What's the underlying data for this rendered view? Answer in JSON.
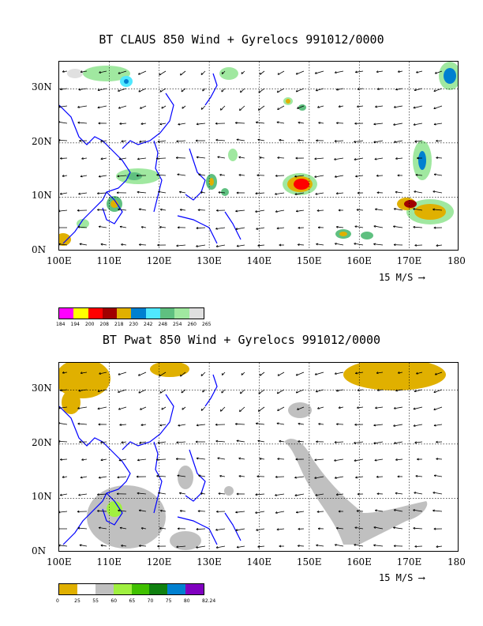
{
  "panels": [
    {
      "title": "BT CLAUS 850 Wind + Gyrelocs 991012/0000",
      "lon_labels": [
        "100E",
        "110E",
        "120E",
        "130E",
        "140E",
        "150E",
        "160E",
        "170E",
        "180"
      ],
      "lat_labels": [
        "30N",
        "20N",
        "10N",
        "0N"
      ],
      "scale_label": "15 M/S",
      "colorbar": {
        "colors": [
          "#ff00ff",
          "#ffff00",
          "#ff0000",
          "#a00000",
          "#e0b000",
          "#0080d0",
          "#50e8ff",
          "#5fc080",
          "#a0e8a0",
          "#e0e0e0"
        ],
        "ticks": [
          "184",
          "194",
          "200",
          "208",
          "218",
          "230",
          "242",
          "248",
          "254",
          "260",
          "265"
        ]
      }
    },
    {
      "title": "BT Pwat 850 Wind + Gyrelocs 991012/0000",
      "lon_labels": [
        "100E",
        "110E",
        "120E",
        "130E",
        "140E",
        "150E",
        "160E",
        "170E",
        "180"
      ],
      "lat_labels": [
        "30N",
        "20N",
        "10N",
        "0N"
      ],
      "scale_label": "15 M/S",
      "colorbar": {
        "colors": [
          "#e0b000",
          "#ffffff",
          "#c0c0c0",
          "#a0f040",
          "#40c000",
          "#108010",
          "#0080d0",
          "#8000c0"
        ],
        "ticks": [
          "0",
          "25",
          "55",
          "60",
          "65",
          "70",
          "75",
          "80",
          "82.24"
        ]
      }
    }
  ],
  "colors": {
    "coast": "#0000ff",
    "grid": "#000000",
    "wind": "#000000"
  }
}
